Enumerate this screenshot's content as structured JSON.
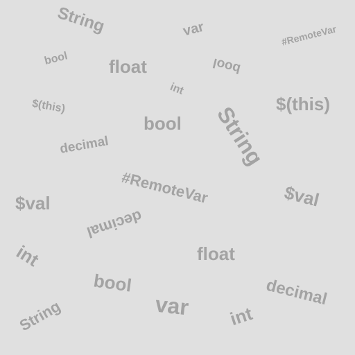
{
  "words": [
    "String",
    "var",
    "#RemoteVar",
    "bool",
    "float",
    "bool",
    "int",
    "$(this)",
    "$(this)",
    "String",
    "bool",
    "decimal",
    "#RemoteVar",
    "$val",
    "$val",
    "decimal",
    "int",
    "float",
    "bool",
    "decimal",
    "var",
    "String",
    "int"
  ]
}
